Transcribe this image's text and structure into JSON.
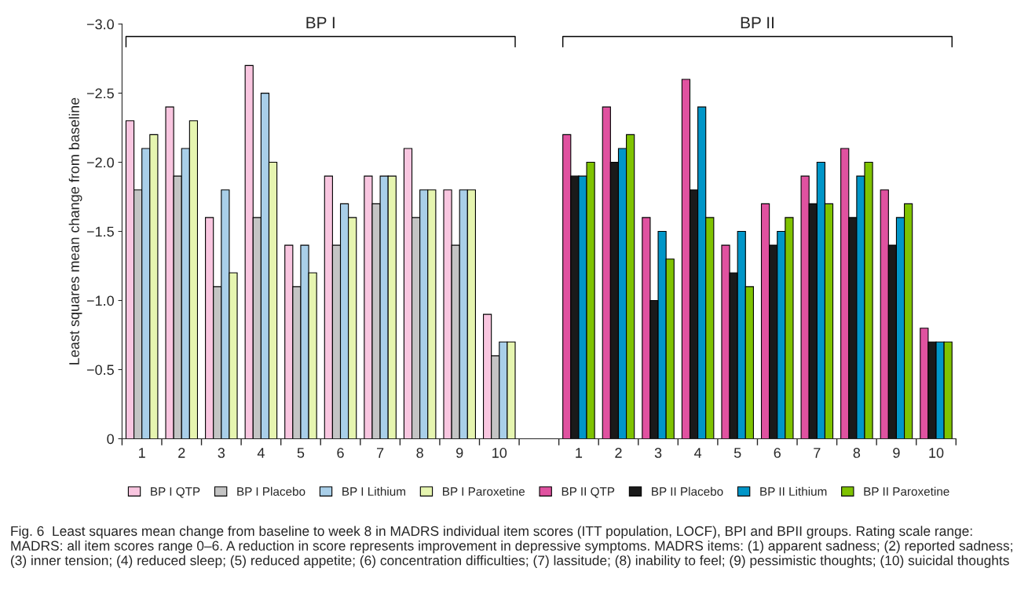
{
  "chart_data": {
    "type": "bar",
    "ylabel": "Least squares mean change from baseline",
    "categories": [
      "1",
      "2",
      "3",
      "4",
      "5",
      "6",
      "7",
      "8",
      "9",
      "10",
      null,
      "1",
      "2",
      "3",
      "4",
      "5",
      "6",
      "7",
      "8",
      "9",
      "10"
    ],
    "series": [
      {
        "name": "BP I QTP",
        "color": "#f9c6e0",
        "values": [
          -2.3,
          -2.4,
          -1.6,
          -2.7,
          -1.4,
          -1.9,
          -1.9,
          -2.1,
          -1.8,
          -0.9,
          null,
          null,
          null,
          null,
          null,
          null,
          null,
          null,
          null,
          null,
          null
        ]
      },
      {
        "name": "BP I Placebo",
        "color": "#c4c4c4",
        "values": [
          -1.8,
          -1.9,
          -1.1,
          -1.6,
          -1.1,
          -1.4,
          -1.7,
          -1.6,
          -1.4,
          -0.6,
          null,
          null,
          null,
          null,
          null,
          null,
          null,
          null,
          null,
          null,
          null
        ]
      },
      {
        "name": "BP I Lithium",
        "color": "#a9cfe9",
        "values": [
          -2.1,
          -2.1,
          -1.8,
          -2.5,
          -1.4,
          -1.7,
          -1.9,
          -1.8,
          -1.8,
          -0.7,
          null,
          null,
          null,
          null,
          null,
          null,
          null,
          null,
          null,
          null,
          null
        ]
      },
      {
        "name": "BP I Paroxetine",
        "color": "#e6f5b0",
        "values": [
          -2.2,
          -2.3,
          -1.2,
          -2.0,
          -1.2,
          -1.6,
          -1.9,
          -1.8,
          -1.8,
          -0.7,
          null,
          null,
          null,
          null,
          null,
          null,
          null,
          null,
          null,
          null,
          null
        ]
      },
      {
        "name": "BP II QTP",
        "color": "#e052a0",
        "values": [
          null,
          null,
          null,
          null,
          null,
          null,
          null,
          null,
          null,
          null,
          null,
          -2.2,
          -2.4,
          -1.6,
          -2.6,
          -1.4,
          -1.7,
          -1.9,
          -2.1,
          -1.8,
          -0.8
        ]
      },
      {
        "name": "BP II Placebo",
        "color": "#1a1a1a",
        "values": [
          null,
          null,
          null,
          null,
          null,
          null,
          null,
          null,
          null,
          null,
          null,
          -1.9,
          -2.0,
          -1.0,
          -1.8,
          -1.2,
          -1.4,
          -1.7,
          -1.6,
          -1.4,
          -0.7
        ]
      },
      {
        "name": "BP II Lithium",
        "color": "#0096c8",
        "values": [
          null,
          null,
          null,
          null,
          null,
          null,
          null,
          null,
          null,
          null,
          null,
          -1.9,
          -2.1,
          -1.5,
          -2.4,
          -1.5,
          -1.5,
          -2.0,
          -1.9,
          -1.6,
          -0.7
        ]
      },
      {
        "name": "BP II Paroxetine",
        "color": "#7fc300",
        "values": [
          null,
          null,
          null,
          null,
          null,
          null,
          null,
          null,
          null,
          null,
          null,
          -2.0,
          -2.2,
          -1.3,
          -1.6,
          -1.1,
          -1.6,
          -1.7,
          -2.0,
          -1.7,
          -0.7
        ]
      }
    ],
    "ylim": [
      0,
      -3.0
    ],
    "yticks": [
      0,
      {
        "value": -0.5,
        "label": "−0.5"
      },
      {
        "value": -1.0,
        "label": "−1.0"
      },
      {
        "value": -1.5,
        "label": "−1.5"
      },
      {
        "value": -2.0,
        "label": "−2.0"
      },
      {
        "value": -2.5,
        "label": "−2.5"
      },
      {
        "value": -3.0,
        "label": "−3.0"
      }
    ],
    "grid": false,
    "legend": "bottom",
    "annotations": [
      "BP I",
      "BP II",
      "Fig. 6  Least squares mean change from baseline to week 8 in MADRS individual item scores (ITT population, LOCF), BPI and BPII groups. Rating scale range: MADRS: all item scores range 0–6. A reduction in score represents improvement in depressive symptoms. MADRS items: (1) apparent sadness; (2) reported sadness; (3) inner tension; (4) reduced sleep; (5) reduced appetite; (6) concentration difficulties; (7) lassitude; (8) inability to feel; (9) pessimistic thoughts; (10) suicidal thoughts"
    ]
  }
}
